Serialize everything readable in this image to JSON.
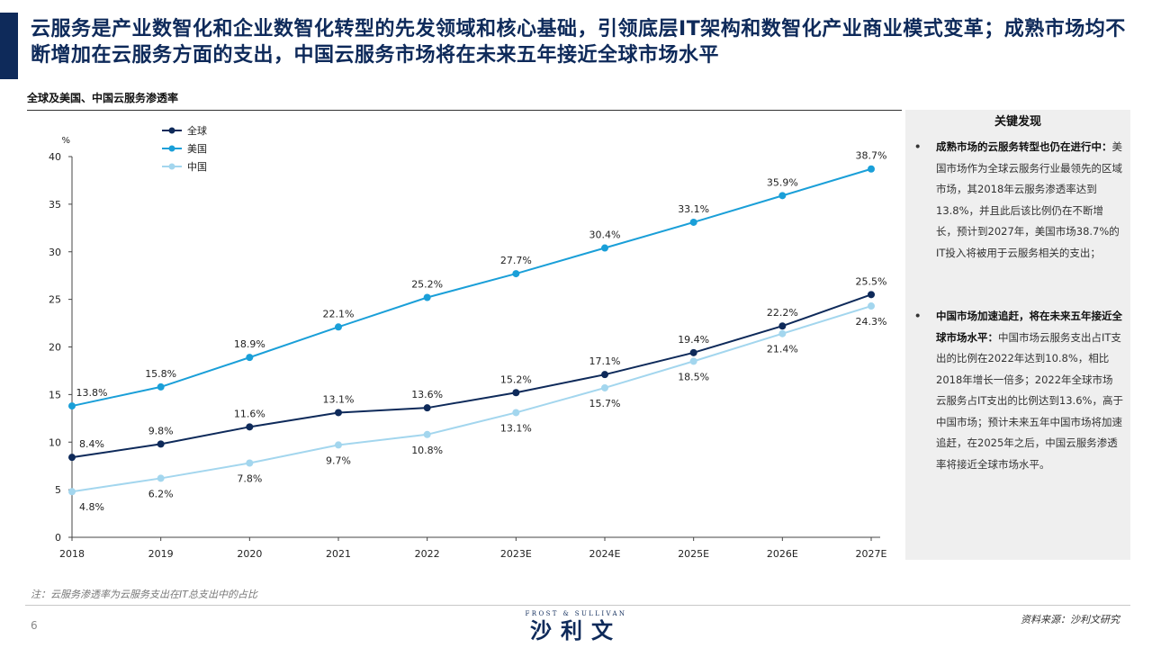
{
  "header": {
    "title": "云服务是产业数智化和企业数智化转型的先发领域和核心基础，引领底层IT架构和数智化产业商业模式变革；成熟市场均不断增加在云服务方面的支出，中国云服务市场将在未来五年接近全球市场水平"
  },
  "chart_section": {
    "subtitle": "全球及美国、中国云服务渗透率"
  },
  "chart_data": {
    "type": "line",
    "title": "全球及美国、中国云服务渗透率",
    "ylabel": "%",
    "xlabel": "",
    "ylim": [
      0,
      40
    ],
    "yticks": [
      "0",
      "5",
      "10",
      "15",
      "20",
      "25",
      "30",
      "35",
      "40"
    ],
    "categories": [
      "2018",
      "2019",
      "2020",
      "2021",
      "2022",
      "2023E",
      "2024E",
      "2025E",
      "2026E",
      "2027E"
    ],
    "grid": false,
    "legend_position": "top-left",
    "series": [
      {
        "name": "全球",
        "color": "#0e2a5a",
        "values": [
          8.4,
          9.8,
          11.6,
          13.1,
          13.6,
          15.2,
          17.1,
          19.4,
          22.2,
          25.5
        ],
        "labels": [
          "8.4%",
          "9.8%",
          "11.6%",
          "13.1%",
          "13.6%",
          "15.2%",
          "17.1%",
          "19.4%",
          "22.2%",
          "25.5%"
        ],
        "label_pos": "above"
      },
      {
        "name": "美国",
        "color": "#1a9fd8",
        "values": [
          13.8,
          15.8,
          18.9,
          22.1,
          25.2,
          27.7,
          30.4,
          33.1,
          35.9,
          38.7
        ],
        "labels": [
          "13.8%",
          "15.8%",
          "18.9%",
          "22.1%",
          "25.2%",
          "27.7%",
          "30.4%",
          "33.1%",
          "35.9%",
          "38.7%"
        ],
        "label_pos": "above"
      },
      {
        "name": "中国",
        "color": "#a3d6ee",
        "values": [
          4.8,
          6.2,
          7.8,
          9.7,
          10.8,
          13.1,
          15.7,
          18.5,
          21.4,
          24.3
        ],
        "labels": [
          "4.8%",
          "6.2%",
          "7.8%",
          "9.7%",
          "10.8%",
          "13.1%",
          "15.7%",
          "18.5%",
          "21.4%",
          "24.3%"
        ],
        "label_pos": "below"
      }
    ]
  },
  "findings": {
    "title": "关键发现",
    "items": [
      {
        "bullet": "•",
        "bold": "成熟市场的云服务转型也仍在进行中：",
        "text": "美国市场作为全球云服务行业最领先的区域市场，其2018年云服务渗透率达到13.8%，并且此后该比例仍在不断增长，预计到2027年，美国市场38.7%的IT投入将被用于云服务相关的支出；"
      },
      {
        "bullet": "•",
        "bold": "中国市场加速追赶，将在未来五年接近全球市场水平：",
        "text": "中国市场云服务支出占IT支出的比例在2022年达到10.8%，相比2018年增长一倍多；2022年全球市场云服务占IT支出的比例达到13.6%，高于中国市场；预计未来五年中国市场将加速追赶，在2025年之后，中国云服务渗透率将接近全球市场水平。"
      }
    ]
  },
  "footer": {
    "note": "注：云服务渗透率为云服务支出在IT总支出中的占比",
    "page_number": "6",
    "logo_top": "FROST & SULLIVAN",
    "logo_main": "沙利文",
    "source": "资料来源：沙利文研究"
  },
  "colors": {
    "brand": "#0e2a5a",
    "usa": "#1a9fd8",
    "china": "#a3d6ee",
    "panel": "#efefef"
  }
}
